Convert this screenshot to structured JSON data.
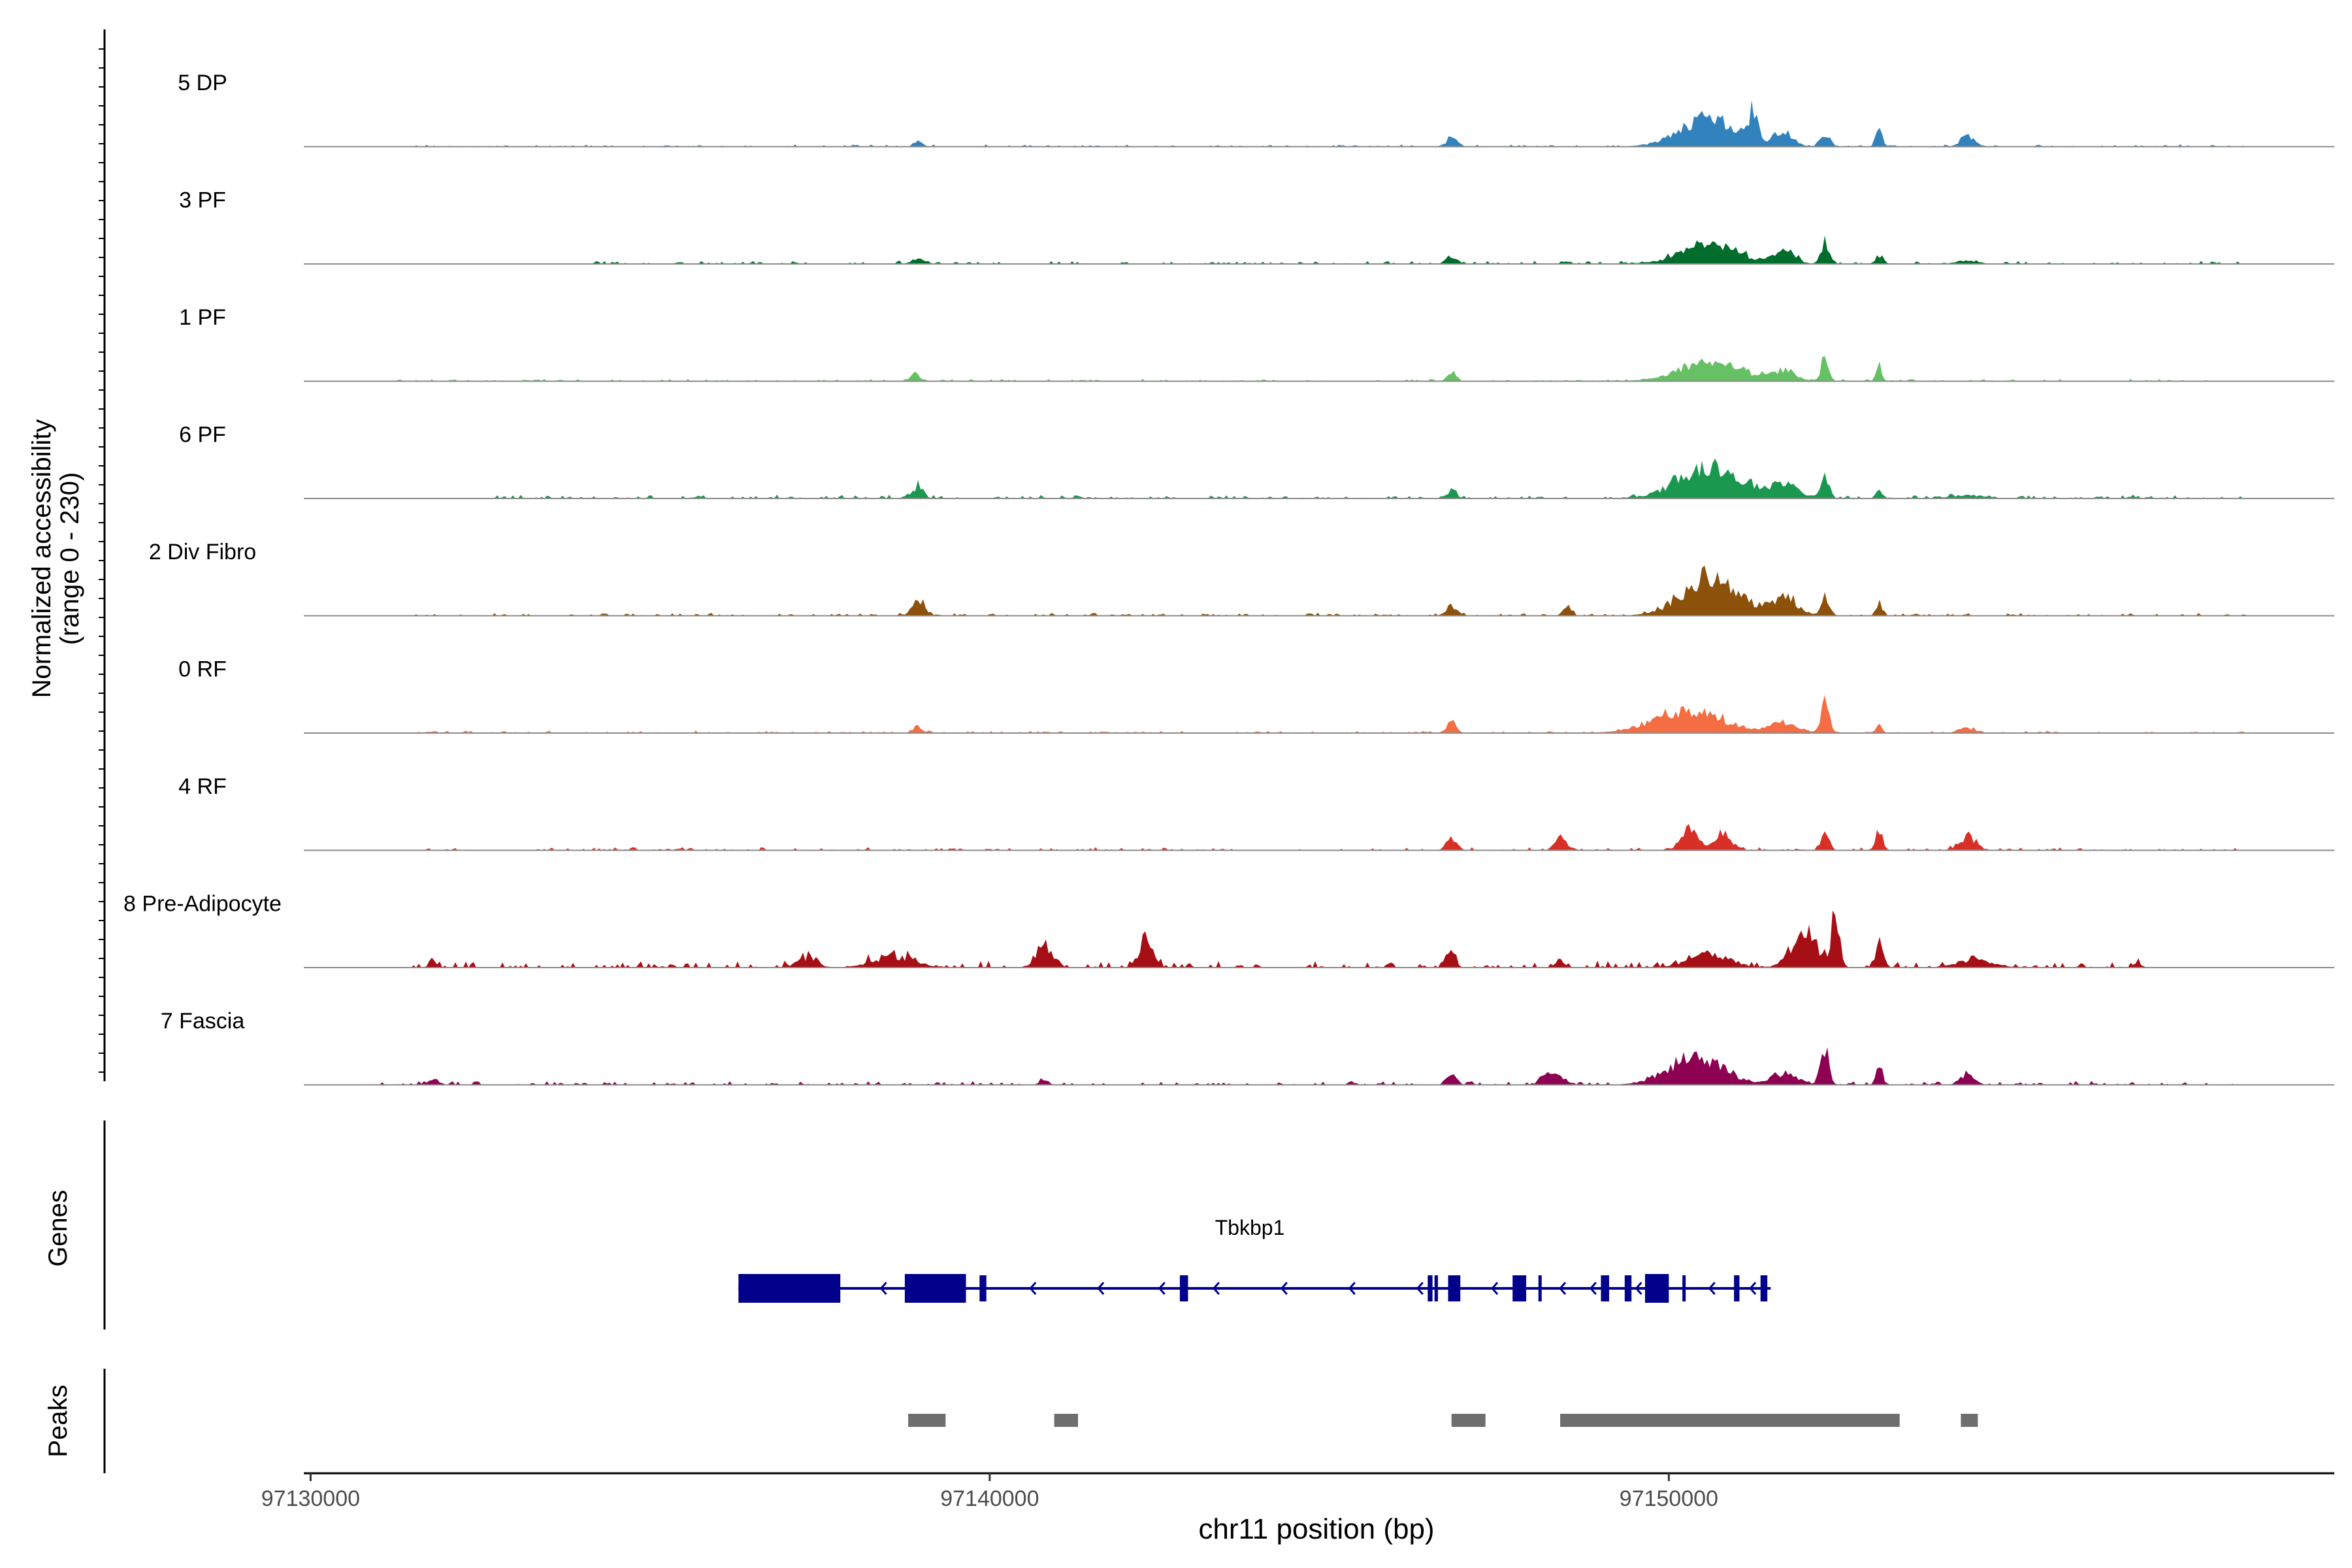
{
  "chart_data": {
    "type": "area",
    "title": "",
    "ylabel_line1": "Normalized accessibility",
    "ylabel_line2": "(range 0 - 230)",
    "y_range": [
      0,
      230
    ],
    "xlabel": "chr11 position (bp)",
    "x_range": [
      97129900,
      97159800
    ],
    "x_ticks": [
      97130000,
      97140000,
      97150000
    ],
    "x_tick_labels": [
      "97130000",
      "97140000",
      "97150000"
    ],
    "tracks_label_genes": "Genes",
    "tracks_label_peaks": "Peaks",
    "series": [
      {
        "name": "5 DP",
        "color": "#3182bd",
        "scale": 0.55,
        "peaks": [
          [
            97138950,
            60,
            16
          ],
          [
            97146800,
            80,
            26
          ],
          [
            97150600,
            420,
            90
          ],
          [
            97151250,
            60,
            100
          ],
          [
            97151700,
            130,
            45
          ],
          [
            97152300,
            75,
            42
          ],
          [
            97153100,
            50,
            48
          ],
          [
            97154400,
            100,
            36
          ]
        ],
        "bg": [
          [
            97131500,
            97158500,
            6
          ]
        ]
      },
      {
        "name": "3 PF",
        "color": "#006d2c",
        "scale": 0.55,
        "peaks": [
          [
            97138950,
            90,
            18
          ],
          [
            97146800,
            75,
            26
          ],
          [
            97150600,
            420,
            60
          ],
          [
            97151700,
            150,
            40
          ],
          [
            97152300,
            60,
            72
          ],
          [
            97153100,
            55,
            28
          ],
          [
            97154400,
            140,
            12
          ]
        ],
        "bg": [
          [
            97134000,
            97158500,
            8
          ]
        ]
      },
      {
        "name": "1 PF",
        "color": "#66c164",
        "scale": 0.55,
        "peaks": [
          [
            97138900,
            70,
            26
          ],
          [
            97146800,
            60,
            30
          ],
          [
            97150600,
            450,
            60
          ],
          [
            97151700,
            200,
            28
          ],
          [
            97152300,
            55,
            80
          ],
          [
            97153100,
            40,
            48
          ]
        ],
        "bg": [
          [
            97131000,
            97158500,
            6
          ]
        ]
      },
      {
        "name": "6 PF",
        "color": "#1a9850",
        "scale": 0.55,
        "peaks": [
          [
            97138950,
            70,
            40
          ],
          [
            97146800,
            70,
            26
          ],
          [
            97150600,
            450,
            100
          ],
          [
            97151700,
            220,
            40
          ],
          [
            97152300,
            60,
            65
          ],
          [
            97153100,
            45,
            30
          ],
          [
            97154400,
            250,
            10
          ]
        ],
        "bg": [
          [
            97132500,
            97158500,
            10
          ]
        ]
      },
      {
        "name": "2 Div Fibro",
        "color": "#8c510a",
        "scale": 0.55,
        "peaks": [
          [
            97138950,
            90,
            55
          ],
          [
            97146800,
            80,
            30
          ],
          [
            97148500,
            60,
            25
          ],
          [
            97150600,
            400,
            120
          ],
          [
            97151700,
            200,
            55
          ],
          [
            97152300,
            55,
            60
          ],
          [
            97153100,
            45,
            40
          ]
        ],
        "bg": [
          [
            97131500,
            97158500,
            8
          ]
        ]
      },
      {
        "name": "0 RF",
        "color": "#f46d43",
        "scale": 0.55,
        "peaks": [
          [
            97138950,
            60,
            20
          ],
          [
            97146800,
            55,
            55
          ],
          [
            97150300,
            500,
            70
          ],
          [
            97151700,
            200,
            35
          ],
          [
            97152300,
            55,
            110
          ],
          [
            97153100,
            40,
            35
          ],
          [
            97154400,
            120,
            16
          ]
        ],
        "bg": [
          [
            97131500,
            97158500,
            6
          ]
        ]
      },
      {
        "name": "4 RF",
        "color": "#d73027",
        "scale": 0.55,
        "peaks": [
          [
            97146800,
            70,
            42
          ],
          [
            97148400,
            80,
            40
          ],
          [
            97150300,
            120,
            70
          ],
          [
            97150800,
            120,
            55
          ],
          [
            97152300,
            55,
            70
          ],
          [
            97153100,
            50,
            70
          ],
          [
            97154400,
            120,
            42
          ]
        ],
        "bg": [
          [
            97131500,
            97158500,
            8
          ]
        ]
      },
      {
        "name": "8 Pre-Adipocyte",
        "color": "#a50f15",
        "scale": 0.55,
        "peaks": [
          [
            97131800,
            50,
            20
          ],
          [
            97137300,
            150,
            28
          ],
          [
            97138600,
            300,
            35
          ],
          [
            97140800,
            120,
            70
          ],
          [
            97142300,
            100,
            90
          ],
          [
            97146800,
            60,
            40
          ],
          [
            97148400,
            60,
            30
          ],
          [
            97150600,
            300,
            38
          ],
          [
            97152000,
            200,
            95
          ],
          [
            97152450,
            60,
            160
          ],
          [
            97153100,
            60,
            75
          ],
          [
            97154500,
            250,
            25
          ],
          [
            97156900,
            50,
            20
          ]
        ],
        "bg": [
          [
            97131500,
            97157000,
            18
          ]
        ]
      },
      {
        "name": "7 Fascia",
        "color": "#8e0152",
        "scale": 0.55,
        "peaks": [
          [
            97131800,
            80,
            20
          ],
          [
            97140800,
            60,
            20
          ],
          [
            97146800,
            70,
            35
          ],
          [
            97148300,
            130,
            45
          ],
          [
            97150400,
            400,
            90
          ],
          [
            97151700,
            200,
            35
          ],
          [
            97152300,
            60,
            115
          ],
          [
            97153100,
            45,
            65
          ],
          [
            97154400,
            100,
            36
          ]
        ],
        "bg": [
          [
            97131000,
            97158500,
            10
          ]
        ]
      }
    ],
    "gene": {
      "name": "Tbkbp1",
      "strand": "-",
      "start": 97136300,
      "end": 97151500,
      "exons": [
        [
          97136300,
          97137800
        ],
        [
          97138750,
          97139650
        ],
        [
          97139850,
          97139950
        ],
        [
          97142800,
          97142920
        ],
        [
          97146450,
          97146520
        ],
        [
          97146550,
          97146600
        ],
        [
          97146750,
          97146930
        ],
        [
          97147700,
          97147900
        ],
        [
          97148080,
          97148110
        ],
        [
          97149000,
          97149120
        ],
        [
          97149350,
          97149450
        ],
        [
          97149650,
          97150000
        ],
        [
          97150200,
          97150230
        ],
        [
          97150960,
          97151040
        ],
        [
          97151350,
          97151450
        ]
      ],
      "arrows": [
        97138400,
        97140600,
        97141600,
        97142500,
        97143300,
        97144300,
        97145300,
        97146300,
        97147400,
        97148400,
        97148850,
        97149520,
        97150600,
        97151200
      ]
    },
    "peaks_track": [
      [
        97138800,
        97139350
      ],
      [
        97140950,
        97141300
      ],
      [
        97146800,
        97147300
      ],
      [
        97148400,
        97153400
      ],
      [
        97154300,
        97154550
      ]
    ]
  }
}
